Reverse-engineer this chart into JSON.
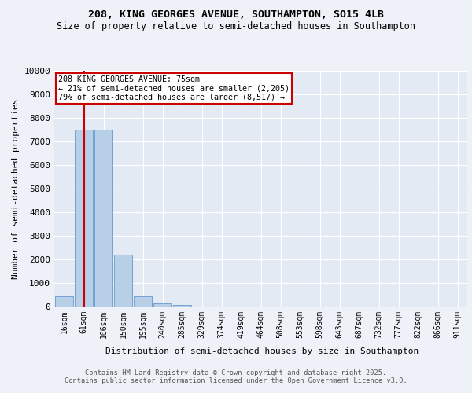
{
  "title_line1": "208, KING GEORGES AVENUE, SOUTHAMPTON, SO15 4LB",
  "title_line2": "Size of property relative to semi-detached houses in Southampton",
  "xlabel": "Distribution of semi-detached houses by size in Southampton",
  "ylabel": "Number of semi-detached properties",
  "categories": [
    "16sqm",
    "61sqm",
    "106sqm",
    "150sqm",
    "195sqm",
    "240sqm",
    "285sqm",
    "329sqm",
    "374sqm",
    "419sqm",
    "464sqm",
    "508sqm",
    "553sqm",
    "598sqm",
    "643sqm",
    "687sqm",
    "732sqm",
    "777sqm",
    "822sqm",
    "866sqm",
    "911sqm"
  ],
  "values": [
    430,
    7500,
    7500,
    2200,
    430,
    120,
    55,
    0,
    0,
    0,
    0,
    0,
    0,
    0,
    0,
    0,
    0,
    0,
    0,
    0,
    0
  ],
  "bar_color": "#b8cfe8",
  "bar_edge_color": "#6699cc",
  "annotation_title": "208 KING GEORGES AVENUE: 75sqm",
  "annotation_line1": "← 21% of semi-detached houses are smaller (2,205)",
  "annotation_line2": "79% of semi-detached houses are larger (8,517) →",
  "property_line_x": 1.5,
  "ylim": [
    0,
    10000
  ],
  "yticks": [
    0,
    1000,
    2000,
    3000,
    4000,
    5000,
    6000,
    7000,
    8000,
    9000,
    10000
  ],
  "footer_line1": "Contains HM Land Registry data © Crown copyright and database right 2025.",
  "footer_line2": "Contains public sector information licensed under the Open Government Licence v3.0.",
  "background_color": "#eef2f8",
  "plot_bg_color": "#e4eaf4",
  "annotation_box_color": "#ffffff",
  "annotation_box_edge": "#cc0000",
  "red_line_color": "#cc0000"
}
